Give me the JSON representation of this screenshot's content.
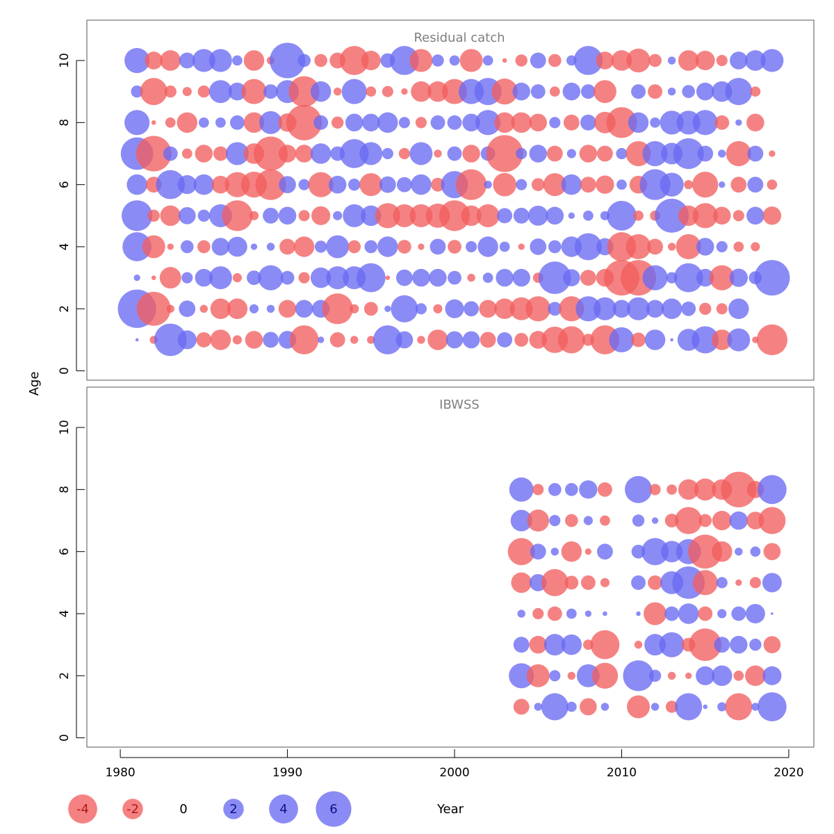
{
  "chart_data": {
    "type": "bubble",
    "xlabel": "Year",
    "ylabel": "Age",
    "xlim": [
      1978,
      2021.5
    ],
    "ylim": [
      -0.3,
      11.3
    ],
    "x_ticks": [
      1980,
      1990,
      2000,
      2010,
      2020
    ],
    "y_ticks": [
      0,
      2,
      4,
      6,
      8,
      10
    ],
    "colors": {
      "positive": "#6a6af2",
      "negative": "#f25f5f"
    },
    "legend": {
      "values": [
        -4,
        -2,
        0,
        2,
        4,
        6
      ],
      "labels": [
        "-4",
        "-2",
        "0",
        "2",
        "4",
        "6"
      ]
    },
    "panels": [
      {
        "title": "Residual catch",
        "start_year": 1981,
        "residuals": {
          "10": [
            3,
            -1.5,
            -2,
            1.2,
            2.5,
            2.5,
            0.5,
            -2,
            -0.3,
            6,
            0.8,
            -0.8,
            -1.2,
            -4,
            -1.8,
            1,
            4,
            -2.5,
            0.7,
            0.5,
            -2.5,
            0.5,
            -0.1,
            -0.7,
            1.2,
            -0.8,
            0.5,
            4,
            -1.5,
            -2,
            -2.7,
            -0.8,
            0.3,
            -2,
            -1.8,
            -0.6,
            1.5,
            2,
            2.5
          ],
          "9": [
            0.7,
            -3.5,
            -0.7,
            -0.4,
            -0.7,
            2.5,
            1.5,
            -3,
            1,
            2.5,
            -4.5,
            2,
            -0.3,
            3,
            -0.5,
            -0.6,
            -0.2,
            -2,
            -2,
            -3,
            3,
            3.5,
            -3.2,
            1.5,
            1,
            -0.5,
            1.5,
            1,
            -2.5,
            0,
            1,
            -1,
            0.3,
            0.8,
            1.5,
            2,
            3.5,
            -0.5
          ],
          "8": [
            3,
            -0.1,
            -0.5,
            -2,
            0.5,
            0.5,
            1,
            -2,
            2.5,
            -1.6,
            -6,
            1,
            -0.7,
            1.5,
            1.5,
            2,
            0.6,
            -0.6,
            1,
            1,
            1.5,
            3,
            -2,
            -2,
            -1.5,
            0.6,
            -1.2,
            1.2,
            -2.2,
            -4.5,
            2,
            0.5,
            2.7,
            2.7,
            3,
            -1,
            0.2,
            -1.5
          ],
          "7": [
            5,
            -6,
            1,
            -0.5,
            -1.5,
            -1,
            2.5,
            -2,
            -5.5,
            -1.5,
            -1.5,
            2,
            1,
            4,
            2.5,
            0.6,
            -0.6,
            2.5,
            -0.3,
            1,
            -1.5,
            1,
            -6.5,
            0.6,
            1.5,
            -1.2,
            0.4,
            -1.5,
            -1.2,
            0.6,
            -3,
            3,
            2.2,
            4.5,
            1.2,
            0.3,
            -3,
            1.2,
            -0.2
          ],
          "6": [
            2,
            -1.2,
            4,
            1.7,
            2,
            -1.5,
            -3,
            -3.2,
            -4.5,
            1.4,
            0.6,
            -3,
            1.5,
            0.7,
            -2.5,
            1.3,
            1.1,
            2,
            -0.9,
            3.5,
            -4.5,
            0.3,
            -2.6,
            0.6,
            -0.8,
            -2.5,
            2,
            -1.2,
            -1.6,
            0.5,
            -1.5,
            4.5,
            2.7,
            -0.4,
            -3.2,
            0.2,
            -1.2,
            1.2,
            -0.5
          ],
          "5": [
            4.5,
            -0.7,
            -2,
            1.4,
            0.7,
            2.5,
            -4.5,
            -0.4,
            1.2,
            1.5,
            -0.6,
            -1.7,
            0.4,
            2.5,
            2,
            -3,
            -2.5,
            -2.5,
            -2.8,
            -4.5,
            -2,
            -2.5,
            1.1,
            1.2,
            1.9,
            1.5,
            0.2,
            0.5,
            0.4,
            4.2,
            -0.5,
            -0.5,
            5.5,
            -2,
            -3,
            -1.5,
            -0.6,
            1.5,
            -1.6
          ],
          "4": [
            4,
            -2.5,
            -0.2,
            0.8,
            -0.8,
            1.5,
            1.9,
            0.2,
            0.3,
            -1.2,
            -2,
            0.7,
            2.5,
            -0.8,
            0.8,
            2,
            -0.9,
            -0.2,
            1.2,
            -0.9,
            0.6,
            2,
            0.5,
            -0.2,
            1.3,
            0.8,
            2,
            3.5,
            1.4,
            -4,
            -3,
            -1.2,
            -0.3,
            -3,
            1.5,
            0.6,
            -0.5,
            -0.4
          ],
          "3": [
            0.2,
            -0.1,
            -2.2,
            0.6,
            1.5,
            2.5,
            -0.4,
            1,
            3,
            0.9,
            -0.6,
            2,
            2.5,
            2.5,
            4,
            -0.1,
            1.3,
            1.5,
            1.5,
            0.9,
            -0.3,
            0.5,
            1.5,
            1.5,
            -0.5,
            5,
            1.4,
            -1.2,
            -1.5,
            -6,
            -6,
            3,
            0.6,
            4,
            1.5,
            -3,
            1.6,
            0.8,
            6
          ],
          "2": [
            7,
            -5.5,
            -0.3,
            1.3,
            -0.3,
            -2,
            -2,
            0.4,
            0.3,
            -1.5,
            1.5,
            1.5,
            -4.5,
            -0.4,
            -0.9,
            0.2,
            3.5,
            0.6,
            -0.4,
            1.7,
            1.1,
            -1.5,
            -2,
            -2.5,
            -3,
            0.9,
            -3,
            3,
            2.5,
            1.5,
            2.5,
            1.5,
            2,
            1,
            -0.7,
            -0.6,
            2
          ],
          "1": [
            0.05,
            -0.3,
            5,
            1.7,
            -1.1,
            -2,
            -0.4,
            -1.5,
            1.2,
            1.5,
            -4,
            0.2,
            -1.1,
            -0.3,
            -0.3,
            4,
            1.4,
            -0.3,
            -2,
            1.4,
            1.4,
            -1.2,
            1.1,
            -0.9,
            -1.5,
            -3.3,
            -3.5,
            -0.7,
            -4,
            3,
            -1,
            2,
            0.05,
            2.3,
            3.5,
            -2,
            2.5,
            -0.2,
            -4.5
          ]
        }
      },
      {
        "title": "IBWSS",
        "start_year": 2004,
        "residuals": {
          "8": [
            2.8,
            -0.6,
            0.8,
            0.8,
            1.6,
            -1,
            null,
            3.5,
            -0.6,
            -0.5,
            -2,
            -2.3,
            -2,
            -6,
            -1.4,
            4
          ],
          "7": [
            2.2,
            -2.3,
            0.6,
            -0.8,
            0.4,
            -0.5,
            null,
            0.7,
            0.2,
            -0.9,
            -3.5,
            -0.8,
            -1.8,
            1.6,
            -1.5,
            -3.5
          ],
          "6": [
            -3.5,
            1.2,
            0.3,
            -2,
            -0.2,
            1.2,
            null,
            0.9,
            3.5,
            2.2,
            3,
            -5.5,
            -2,
            0.3,
            0.5,
            -1.4
          ],
          "5": [
            -2,
            1.4,
            -3.5,
            -0.9,
            -1,
            -0.4,
            null,
            1,
            -1,
            2.5,
            5,
            -3,
            0.6,
            -0.2,
            -0.6,
            1.8
          ],
          "4": [
            0.3,
            -0.6,
            -1,
            0.5,
            0.2,
            0.1,
            null,
            0.1,
            -2.5,
            1,
            2,
            -1,
            0.4,
            1,
            1.8,
            0.03
          ],
          "3": [
            1.2,
            -1.5,
            2.2,
            2,
            -0.5,
            -4,
            null,
            -0.3,
            2.2,
            3,
            -0.9,
            -5,
            1.2,
            1.5,
            0.7,
            -1.4
          ],
          "2": [
            3,
            -2.5,
            0.6,
            -0.3,
            2.5,
            -3.2,
            null,
            4.5,
            0.7,
            -0.3,
            -0.2,
            1.7,
            2,
            -0.5,
            -2,
            1.7
          ],
          "1": [
            -1.2,
            0.3,
            3.5,
            0.5,
            -1.4,
            0.3,
            null,
            -2.5,
            0.3,
            -0.7,
            3.5,
            0.1,
            0.4,
            -3.5,
            0.3,
            4
          ]
        }
      }
    ]
  }
}
